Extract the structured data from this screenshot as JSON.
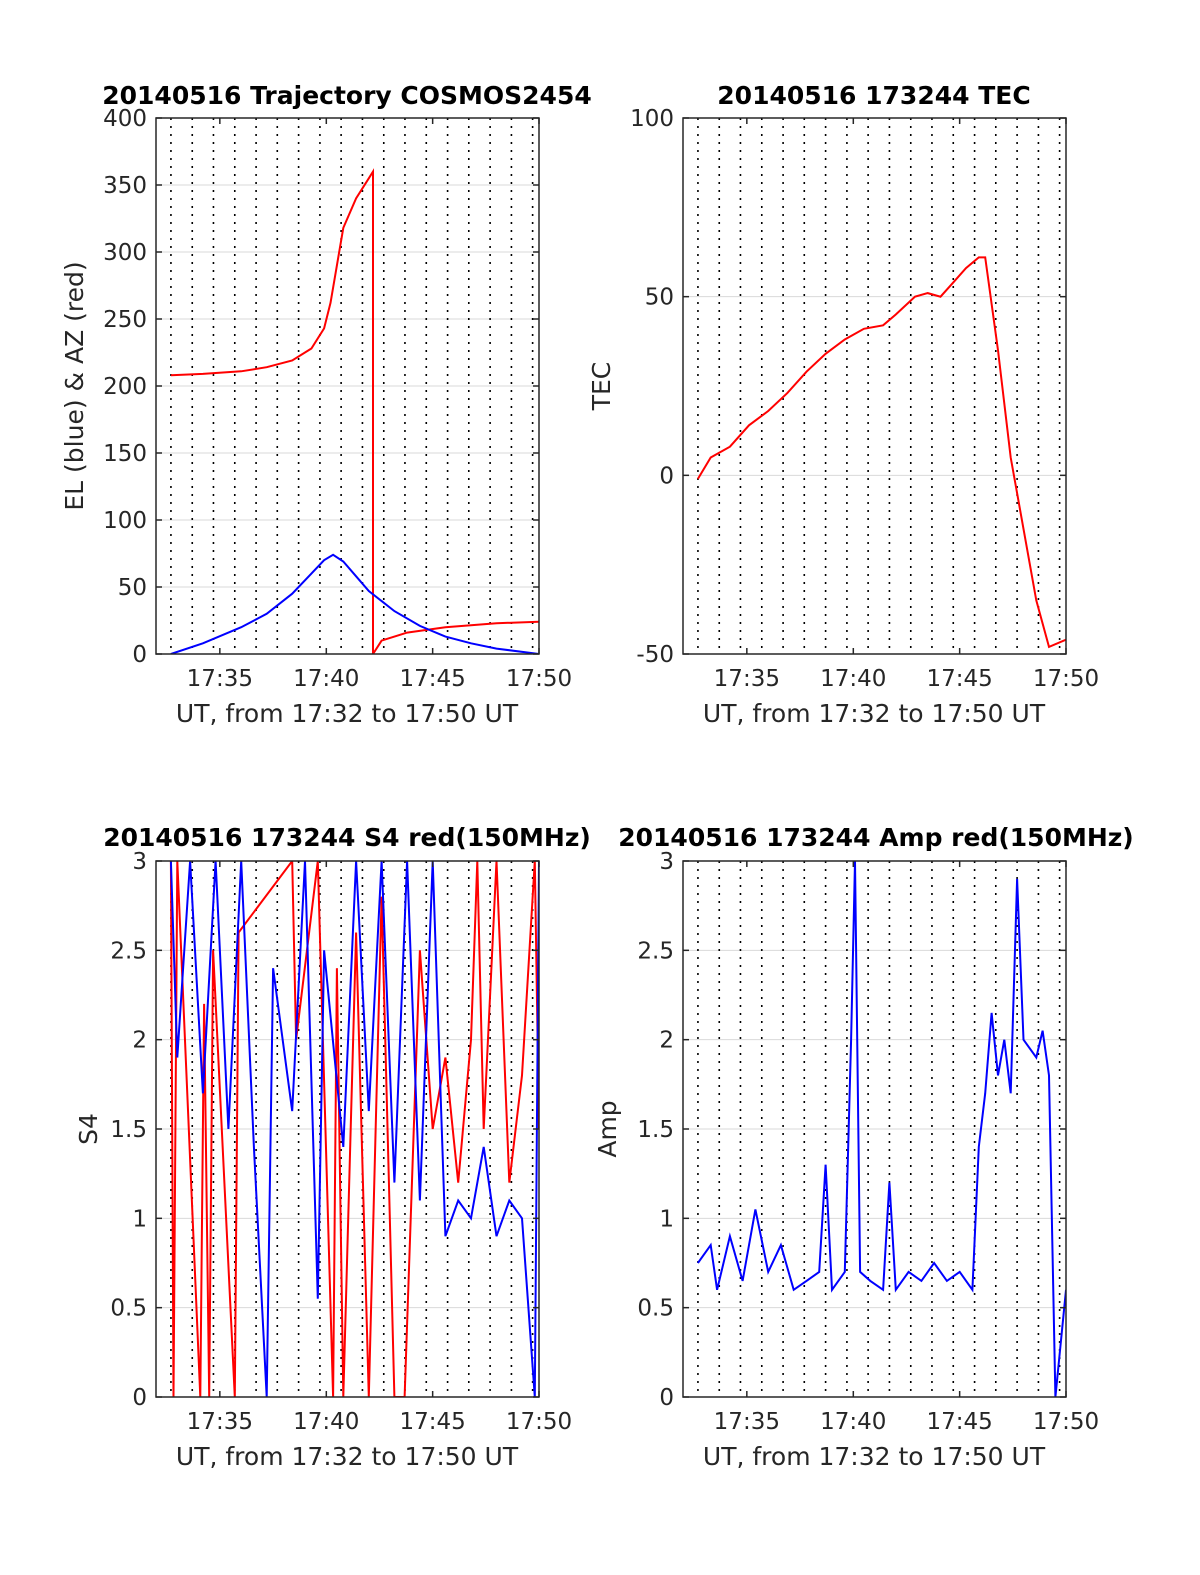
{
  "figure": {
    "colors": {
      "red": "#ff0000",
      "blue": "#0000ff",
      "grid": "#d9d9d9",
      "dotted": "#000000",
      "axis": "#262626"
    }
  },
  "chart_data": [
    {
      "id": "traj",
      "type": "line",
      "title": "20140516 Trajectory COSMOS2454",
      "xlabel": "UT, from 17:32 to 17:50 UT",
      "ylabel": "EL (blue) & AZ (red)",
      "xlim": [
        17.5333,
        17.8333
      ],
      "ylim": [
        0,
        400
      ],
      "yticks": [
        0,
        50,
        100,
        150,
        200,
        250,
        300,
        350,
        400
      ],
      "xticks": [
        {
          "v": 17.5833,
          "label": "17:35"
        },
        {
          "v": 17.6667,
          "label": "17:40"
        },
        {
          "v": 17.75,
          "label": "17:45"
        },
        {
          "v": 17.8333,
          "label": "17:50"
        }
      ],
      "dotted_x": [
        17.545,
        17.5617,
        17.5783,
        17.595,
        17.6117,
        17.6283,
        17.645,
        17.6617,
        17.6783,
        17.695,
        17.7117,
        17.7283,
        17.745,
        17.7617,
        17.7783,
        17.795,
        17.8117,
        17.8283
      ],
      "series": [
        {
          "name": "AZ",
          "color": "#ff0000",
          "values": [
            [
              17.545,
              208
            ],
            [
              17.57,
              209
            ],
            [
              17.6,
              211
            ],
            [
              17.62,
              214
            ],
            [
              17.64,
              219
            ],
            [
              17.655,
              228
            ],
            [
              17.665,
              243
            ],
            [
              17.67,
              262
            ],
            [
              17.675,
              290
            ],
            [
              17.68,
              318
            ],
            [
              17.69,
              340
            ],
            [
              17.7,
              355
            ],
            [
              17.7033,
              360
            ],
            [
              17.7033,
              0
            ],
            [
              17.71,
              10
            ],
            [
              17.73,
              16
            ],
            [
              17.76,
              20
            ],
            [
              17.8,
              23
            ],
            [
              17.8333,
              24
            ]
          ]
        },
        {
          "name": "EL",
          "color": "#0000ff",
          "values": [
            [
              17.545,
              0
            ],
            [
              17.57,
              8
            ],
            [
              17.6,
              20
            ],
            [
              17.62,
              30
            ],
            [
              17.64,
              45
            ],
            [
              17.655,
              60
            ],
            [
              17.665,
              70
            ],
            [
              17.672,
              74
            ],
            [
              17.68,
              69
            ],
            [
              17.69,
              58
            ],
            [
              17.7,
              47
            ],
            [
              17.72,
              32
            ],
            [
              17.74,
              21
            ],
            [
              17.76,
              13
            ],
            [
              17.78,
              8
            ],
            [
              17.8,
              4
            ],
            [
              17.8333,
              0
            ]
          ]
        }
      ]
    },
    {
      "id": "tec",
      "type": "line",
      "title": "20140516 173244 TEC",
      "xlabel": "UT, from 17:32 to 17:50 UT",
      "ylabel": "TEC",
      "xlim": [
        17.5333,
        17.8333
      ],
      "ylim": [
        -50,
        100
      ],
      "yticks": [
        -50,
        0,
        50,
        100
      ],
      "xticks": [
        {
          "v": 17.5833,
          "label": "17:35"
        },
        {
          "v": 17.6667,
          "label": "17:40"
        },
        {
          "v": 17.75,
          "label": "17:45"
        },
        {
          "v": 17.8333,
          "label": "17:50"
        }
      ],
      "dotted_x": [
        17.545,
        17.5617,
        17.5783,
        17.595,
        17.6117,
        17.6283,
        17.645,
        17.6617,
        17.6783,
        17.695,
        17.7117,
        17.7283,
        17.745,
        17.7617,
        17.7783,
        17.795,
        17.8117,
        17.8283
      ],
      "series": [
        {
          "name": "TEC",
          "color": "#ff0000",
          "values": [
            [
              17.545,
              -1
            ],
            [
              17.555,
              5
            ],
            [
              17.57,
              8
            ],
            [
              17.585,
              14
            ],
            [
              17.6,
              18
            ],
            [
              17.615,
              23
            ],
            [
              17.63,
              29
            ],
            [
              17.645,
              34
            ],
            [
              17.66,
              38
            ],
            [
              17.675,
              41
            ],
            [
              17.69,
              42
            ],
            [
              17.7,
              45
            ],
            [
              17.715,
              50
            ],
            [
              17.725,
              51
            ],
            [
              17.735,
              50
            ],
            [
              17.745,
              54
            ],
            [
              17.755,
              58
            ],
            [
              17.765,
              61
            ],
            [
              17.77,
              61
            ],
            [
              17.78,
              35
            ],
            [
              17.79,
              5
            ],
            [
              17.8,
              -15
            ],
            [
              17.81,
              -35
            ],
            [
              17.82,
              -48
            ],
            [
              17.8333,
              -46
            ]
          ]
        }
      ]
    },
    {
      "id": "s4",
      "type": "line",
      "title": "20140516 173244 S4 red(150MHz)",
      "xlabel": "UT, from 17:32 to 17:50 UT",
      "ylabel": "S4",
      "xlim": [
        17.5333,
        17.8333
      ],
      "ylim": [
        0,
        3
      ],
      "yticks": [
        0,
        0.5,
        1,
        1.5,
        2,
        2.5,
        3
      ],
      "xticks": [
        {
          "v": 17.5833,
          "label": "17:35"
        },
        {
          "v": 17.6667,
          "label": "17:40"
        },
        {
          "v": 17.75,
          "label": "17:45"
        },
        {
          "v": 17.8333,
          "label": "17:50"
        }
      ],
      "dotted_x": [
        17.545,
        17.5617,
        17.5783,
        17.595,
        17.6117,
        17.6283,
        17.645,
        17.6617,
        17.6783,
        17.695,
        17.7117,
        17.7283,
        17.745,
        17.7617,
        17.7783,
        17.795,
        17.8117,
        17.8283
      ],
      "series": [
        {
          "name": "red",
          "color": "#ff0000",
          "values": [
            [
              17.545,
              3
            ],
            [
              17.547,
              0
            ],
            [
              17.55,
              3
            ],
            [
              17.568,
              0
            ],
            [
              17.571,
              2.2
            ],
            [
              17.575,
              0
            ],
            [
              17.578,
              2.5
            ],
            [
              17.595,
              0
            ],
            [
              17.598,
              2.6
            ],
            [
              17.64,
              3
            ],
            [
              17.643,
              2.0
            ],
            [
              17.66,
              3
            ],
            [
              17.672,
              0
            ],
            [
              17.675,
              2.4
            ],
            [
              17.68,
              0
            ],
            [
              17.69,
              2.6
            ],
            [
              17.7,
              0
            ],
            [
              17.71,
              2.8
            ],
            [
              17.72,
              0
            ],
            [
              17.728,
              0
            ],
            [
              17.74,
              2.5
            ],
            [
              17.75,
              1.5
            ],
            [
              17.76,
              1.9
            ],
            [
              17.77,
              1.2
            ],
            [
              17.78,
              2.0
            ],
            [
              17.785,
              3
            ],
            [
              17.79,
              1.5
            ],
            [
              17.8,
              3
            ],
            [
              17.81,
              1.2
            ],
            [
              17.82,
              1.8
            ],
            [
              17.83,
              3
            ],
            [
              17.8333,
              1.5
            ]
          ]
        },
        {
          "name": "blue",
          "color": "#0000ff",
          "values": [
            [
              17.545,
              3
            ],
            [
              17.55,
              1.9
            ],
            [
              17.56,
              3
            ],
            [
              17.57,
              1.7
            ],
            [
              17.58,
              3
            ],
            [
              17.59,
              1.5
            ],
            [
              17.6,
              3
            ],
            [
              17.61,
              1.4
            ],
            [
              17.62,
              0
            ],
            [
              17.625,
              2.4
            ],
            [
              17.64,
              1.6
            ],
            [
              17.65,
              3
            ],
            [
              17.66,
              0.55
            ],
            [
              17.665,
              2.5
            ],
            [
              17.68,
              1.4
            ],
            [
              17.69,
              3
            ],
            [
              17.7,
              1.6
            ],
            [
              17.71,
              3
            ],
            [
              17.72,
              1.2
            ],
            [
              17.73,
              3
            ],
            [
              17.74,
              1.1
            ],
            [
              17.75,
              3
            ],
            [
              17.76,
              0.9
            ],
            [
              17.77,
              1.1
            ],
            [
              17.78,
              1.0
            ],
            [
              17.79,
              1.4
            ],
            [
              17.8,
              0.9
            ],
            [
              17.81,
              1.1
            ],
            [
              17.82,
              1.0
            ],
            [
              17.83,
              0.0
            ],
            [
              17.8333,
              3
            ]
          ]
        }
      ]
    },
    {
      "id": "amp",
      "type": "line",
      "title": "20140516 173244 Amp red(150MHz)",
      "xlabel": "UT, from 17:32 to 17:50 UT",
      "ylabel": "Amp",
      "xlim": [
        17.5333,
        17.8333
      ],
      "ylim": [
        0,
        3
      ],
      "yticks": [
        0,
        0.5,
        1,
        1.5,
        2,
        2.5,
        3
      ],
      "xticks": [
        {
          "v": 17.5833,
          "label": "17:35"
        },
        {
          "v": 17.6667,
          "label": "17:40"
        },
        {
          "v": 17.75,
          "label": "17:45"
        },
        {
          "v": 17.8333,
          "label": "17:50"
        }
      ],
      "dotted_x": [
        17.545,
        17.5617,
        17.5783,
        17.595,
        17.6117,
        17.6283,
        17.645,
        17.6617,
        17.6783,
        17.695,
        17.7117,
        17.7283,
        17.745,
        17.7617,
        17.7783,
        17.795,
        17.8117,
        17.8283
      ],
      "series": [
        {
          "name": "Amp",
          "color": "#0000ff",
          "values": [
            [
              17.545,
              0.75
            ],
            [
              17.555,
              0.85
            ],
            [
              17.56,
              0.6
            ],
            [
              17.57,
              0.9
            ],
            [
              17.58,
              0.65
            ],
            [
              17.59,
              1.05
            ],
            [
              17.6,
              0.7
            ],
            [
              17.61,
              0.85
            ],
            [
              17.62,
              0.6
            ],
            [
              17.63,
              0.65
            ],
            [
              17.64,
              0.7
            ],
            [
              17.645,
              1.3
            ],
            [
              17.65,
              0.6
            ],
            [
              17.66,
              0.7
            ],
            [
              17.665,
              2.0
            ],
            [
              17.668,
              3.0
            ],
            [
              17.672,
              0.7
            ],
            [
              17.68,
              0.65
            ],
            [
              17.69,
              0.6
            ],
            [
              17.695,
              1.2
            ],
            [
              17.7,
              0.6
            ],
            [
              17.71,
              0.7
            ],
            [
              17.72,
              0.65
            ],
            [
              17.73,
              0.75
            ],
            [
              17.74,
              0.65
            ],
            [
              17.75,
              0.7
            ],
            [
              17.76,
              0.6
            ],
            [
              17.765,
              1.4
            ],
            [
              17.77,
              1.7
            ],
            [
              17.775,
              2.15
            ],
            [
              17.78,
              1.8
            ],
            [
              17.785,
              2.0
            ],
            [
              17.79,
              1.7
            ],
            [
              17.795,
              2.9
            ],
            [
              17.8,
              2.0
            ],
            [
              17.81,
              1.9
            ],
            [
              17.815,
              2.05
            ],
            [
              17.82,
              1.8
            ],
            [
              17.825,
              0.0
            ],
            [
              17.8333,
              0.6
            ]
          ]
        }
      ]
    }
  ]
}
